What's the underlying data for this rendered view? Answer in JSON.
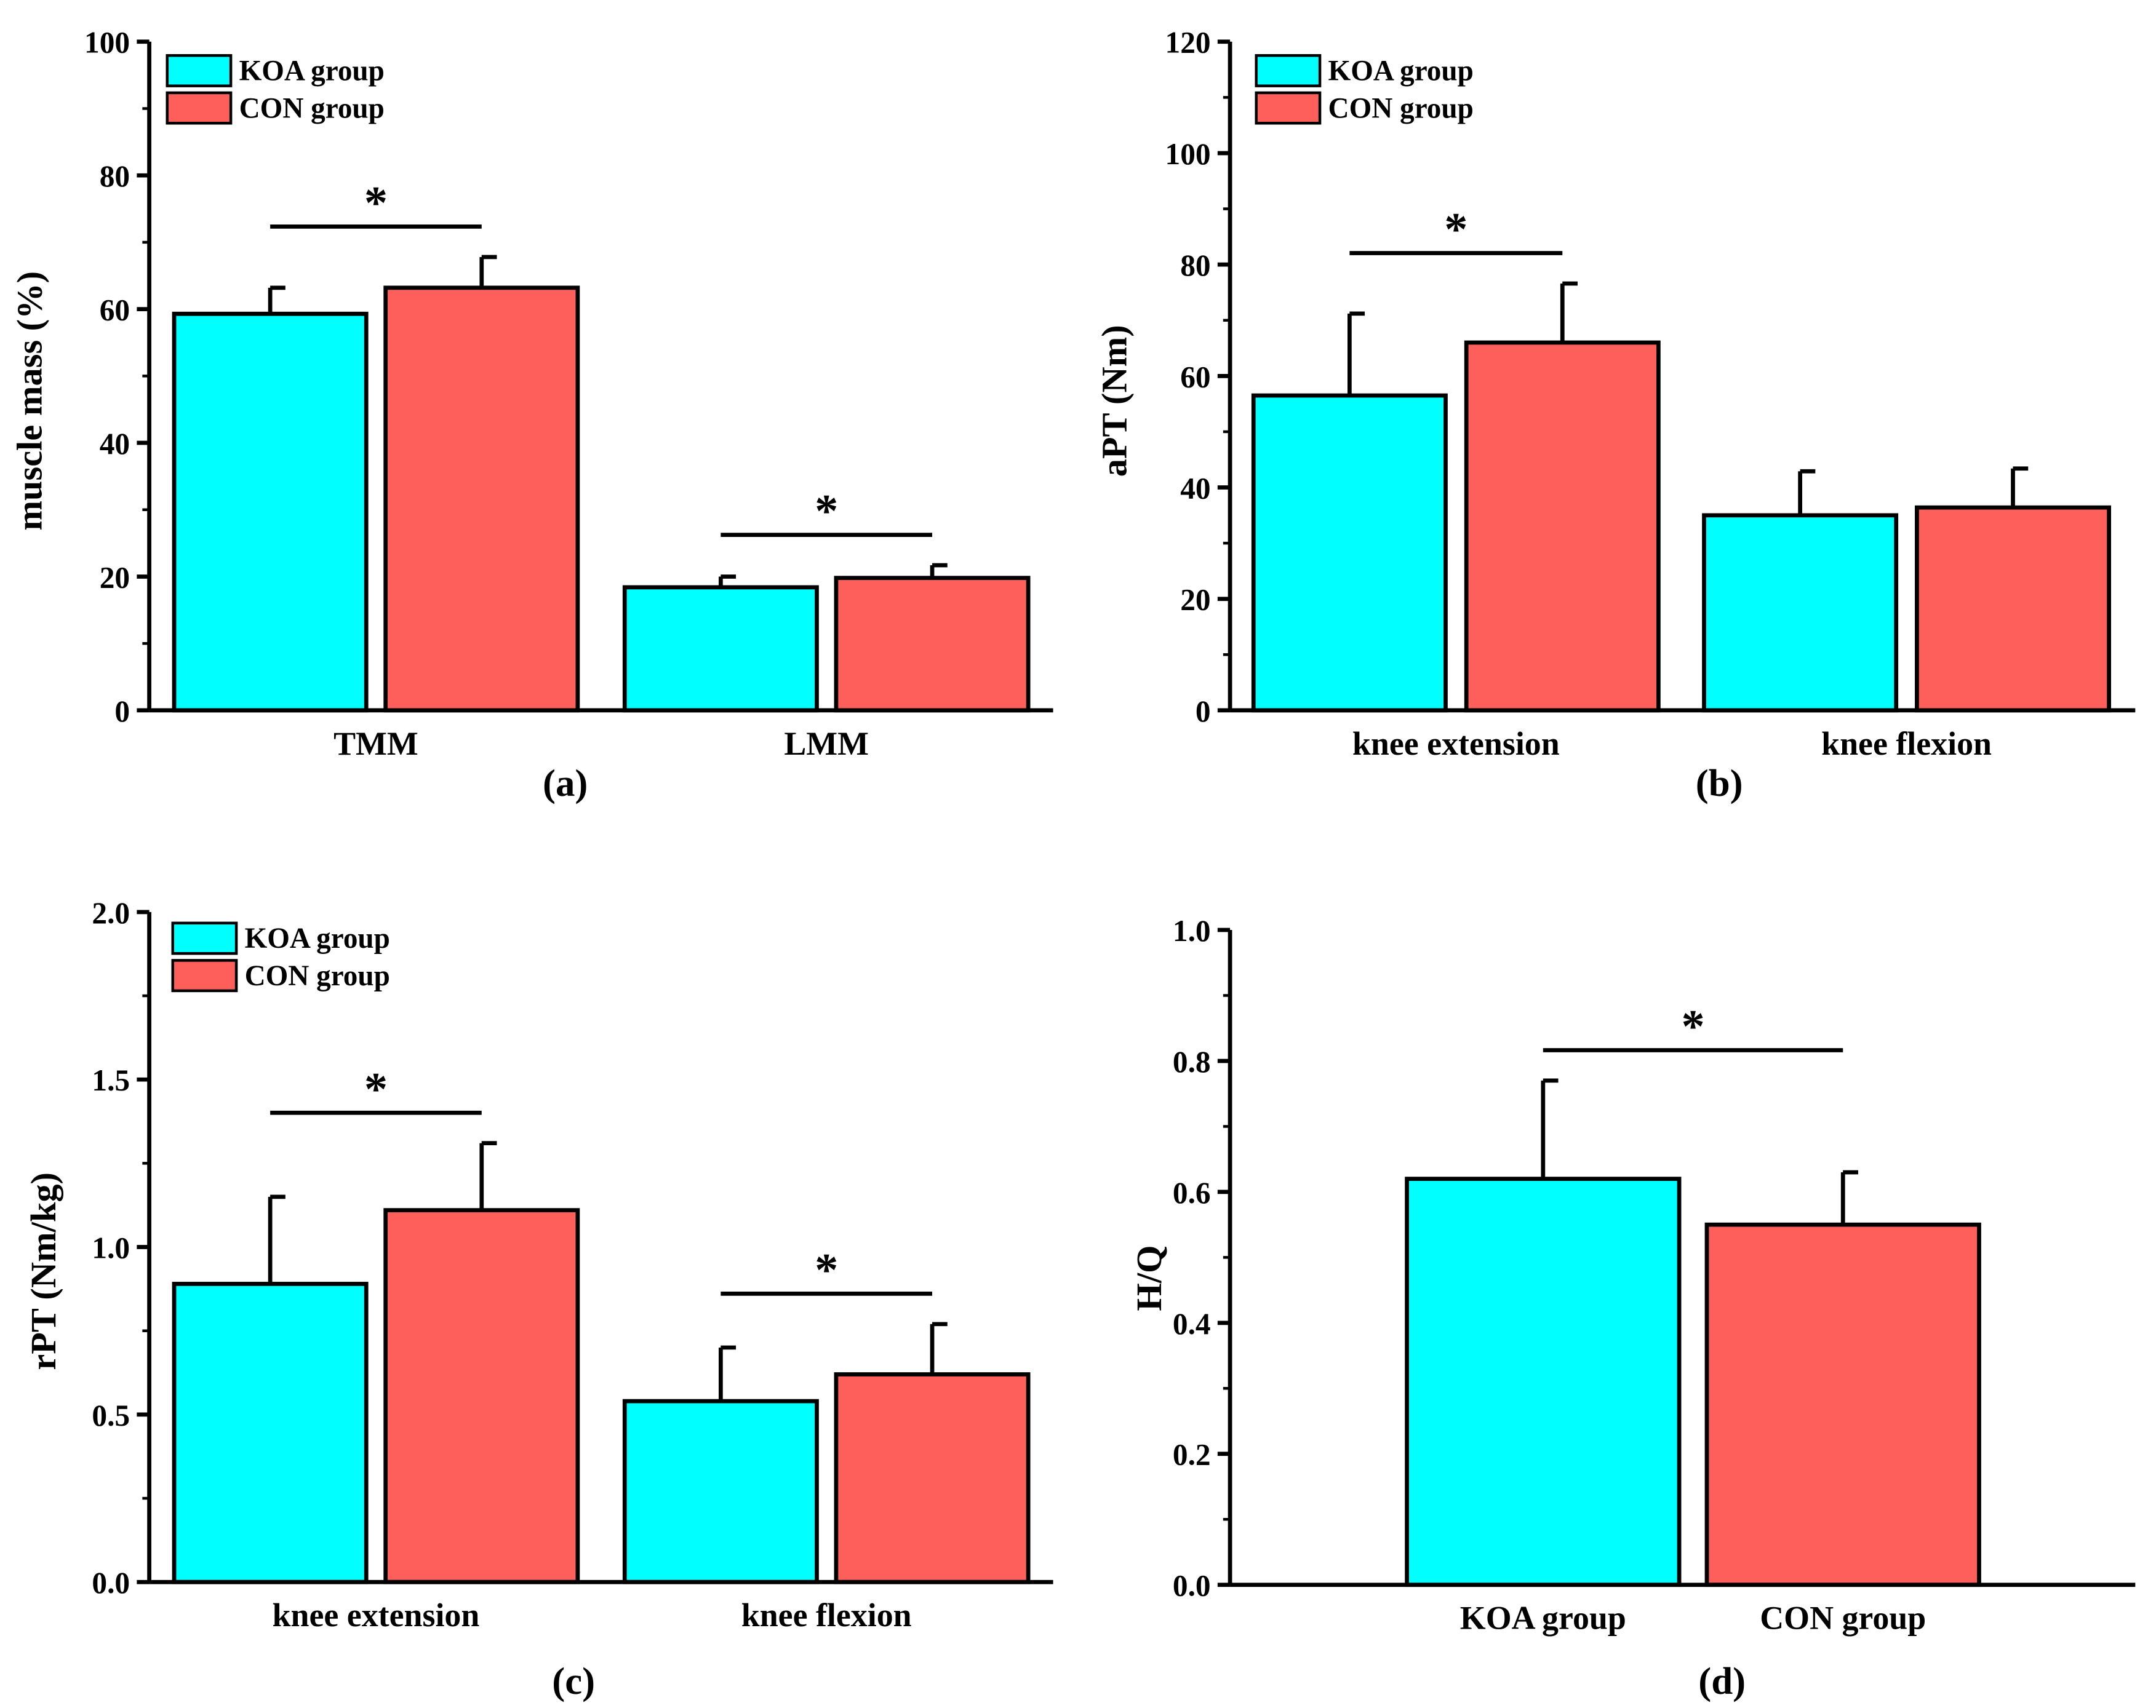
{
  "colors": {
    "koa": "#00ffff",
    "con": "#ff5f5a"
  },
  "legend": [
    "KOA group",
    "CON group"
  ],
  "chart_data": [
    {
      "type": "bar",
      "panel_label": "(a)",
      "ylabel": "muscle mass (%)",
      "ylim": [
        0,
        100
      ],
      "yticks": [
        "0",
        "20",
        "40",
        "60",
        "80",
        "100"
      ],
      "categories": [
        "TMM",
        "LMM"
      ],
      "series": [
        {
          "name": "KOA group",
          "values": [
            59.3,
            18.4
          ],
          "errors": [
            3.9,
            1.6
          ]
        },
        {
          "name": "CON group",
          "values": [
            63.2,
            19.8
          ],
          "errors": [
            4.6,
            1.9
          ]
        }
      ],
      "significance": [
        {
          "category": "TMM",
          "mark": "*"
        },
        {
          "category": "LMM",
          "mark": "*"
        }
      ],
      "legend_position": "top-left"
    },
    {
      "type": "bar",
      "panel_label": "(b)",
      "ylabel": "aPT (Nm)",
      "ylim": [
        0,
        120
      ],
      "yticks": [
        "0",
        "20",
        "40",
        "60",
        "80",
        "100",
        "120"
      ],
      "categories": [
        "knee extension",
        "knee flexion"
      ],
      "series": [
        {
          "name": "KOA group",
          "values": [
            56.5,
            35.0
          ],
          "errors": [
            14.7,
            7.9
          ]
        },
        {
          "name": "CON group",
          "values": [
            66.0,
            36.4
          ],
          "errors": [
            10.6,
            7.0
          ]
        }
      ],
      "significance": [
        {
          "category": "knee extension",
          "mark": "*"
        }
      ],
      "legend_position": "top-left"
    },
    {
      "type": "bar",
      "panel_label": "(c)",
      "ylabel": "rPT (Nm/kg)",
      "ylim": [
        0,
        2.0
      ],
      "yticks": [
        "0.0",
        "0.5",
        "1.0",
        "1.5",
        "2.0"
      ],
      "categories": [
        "knee extension",
        "knee flexion"
      ],
      "series": [
        {
          "name": "KOA group",
          "values": [
            0.89,
            0.54
          ],
          "errors": [
            0.26,
            0.16
          ]
        },
        {
          "name": "CON group",
          "values": [
            1.11,
            0.62
          ],
          "errors": [
            0.2,
            0.15
          ]
        }
      ],
      "significance": [
        {
          "category": "knee extension",
          "mark": "*"
        },
        {
          "category": "knee flexion",
          "mark": "*"
        }
      ],
      "legend_position": "top-left"
    },
    {
      "type": "bar",
      "panel_label": "(d)",
      "ylabel": "H/Q",
      "ylim": [
        0,
        1.0
      ],
      "yticks": [
        "0.0",
        "0.2",
        "0.4",
        "0.6",
        "0.8",
        "1.0"
      ],
      "categories": [
        "KOA group",
        "CON group"
      ],
      "series": [
        {
          "name": "H/Q",
          "values": [
            0.62,
            0.55
          ],
          "errors": [
            0.15,
            0.08
          ]
        }
      ],
      "significance": [
        {
          "between": [
            "KOA group",
            "CON group"
          ],
          "mark": "*"
        }
      ],
      "legend_position": "none"
    }
  ]
}
